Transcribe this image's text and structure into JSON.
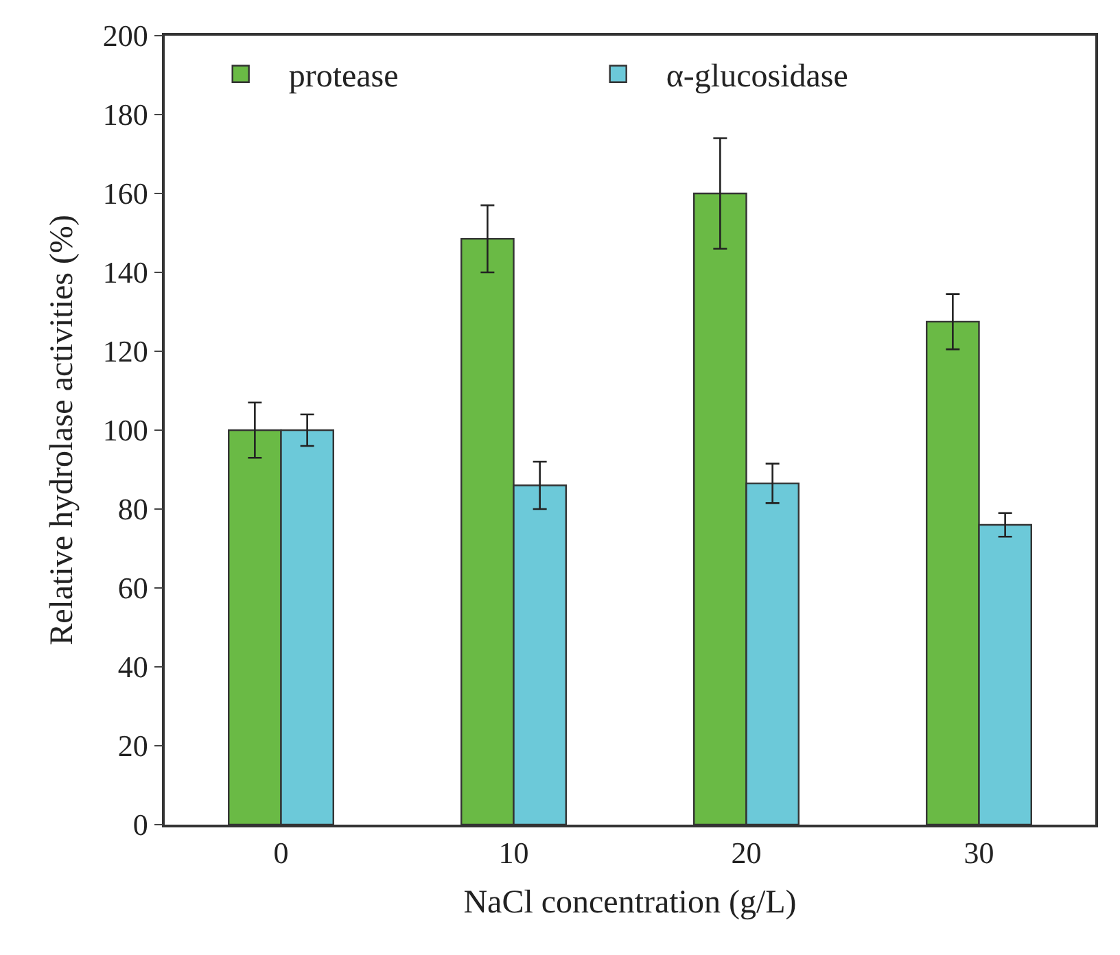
{
  "chart_data": {
    "type": "bar",
    "xlabel": "NaCl concentration (g/L)",
    "ylabel": "Relative hydrolase activities (%)",
    "categories": [
      "0",
      "10",
      "20",
      "30"
    ],
    "series": [
      {
        "name": "protease",
        "color": "#6aba45",
        "values": [
          100,
          148.5,
          160,
          127.5
        ],
        "errors": [
          7,
          8.5,
          14,
          7
        ]
      },
      {
        "name": "α-glucosidase",
        "color": "#6cc9d9",
        "values": [
          100,
          86,
          86.5,
          76
        ],
        "errors": [
          4,
          6,
          5,
          3
        ]
      }
    ],
    "ylim": [
      0,
      200
    ],
    "yticks": [
      0,
      20,
      40,
      60,
      80,
      100,
      120,
      140,
      160,
      180,
      200
    ],
    "legend": "top left"
  }
}
